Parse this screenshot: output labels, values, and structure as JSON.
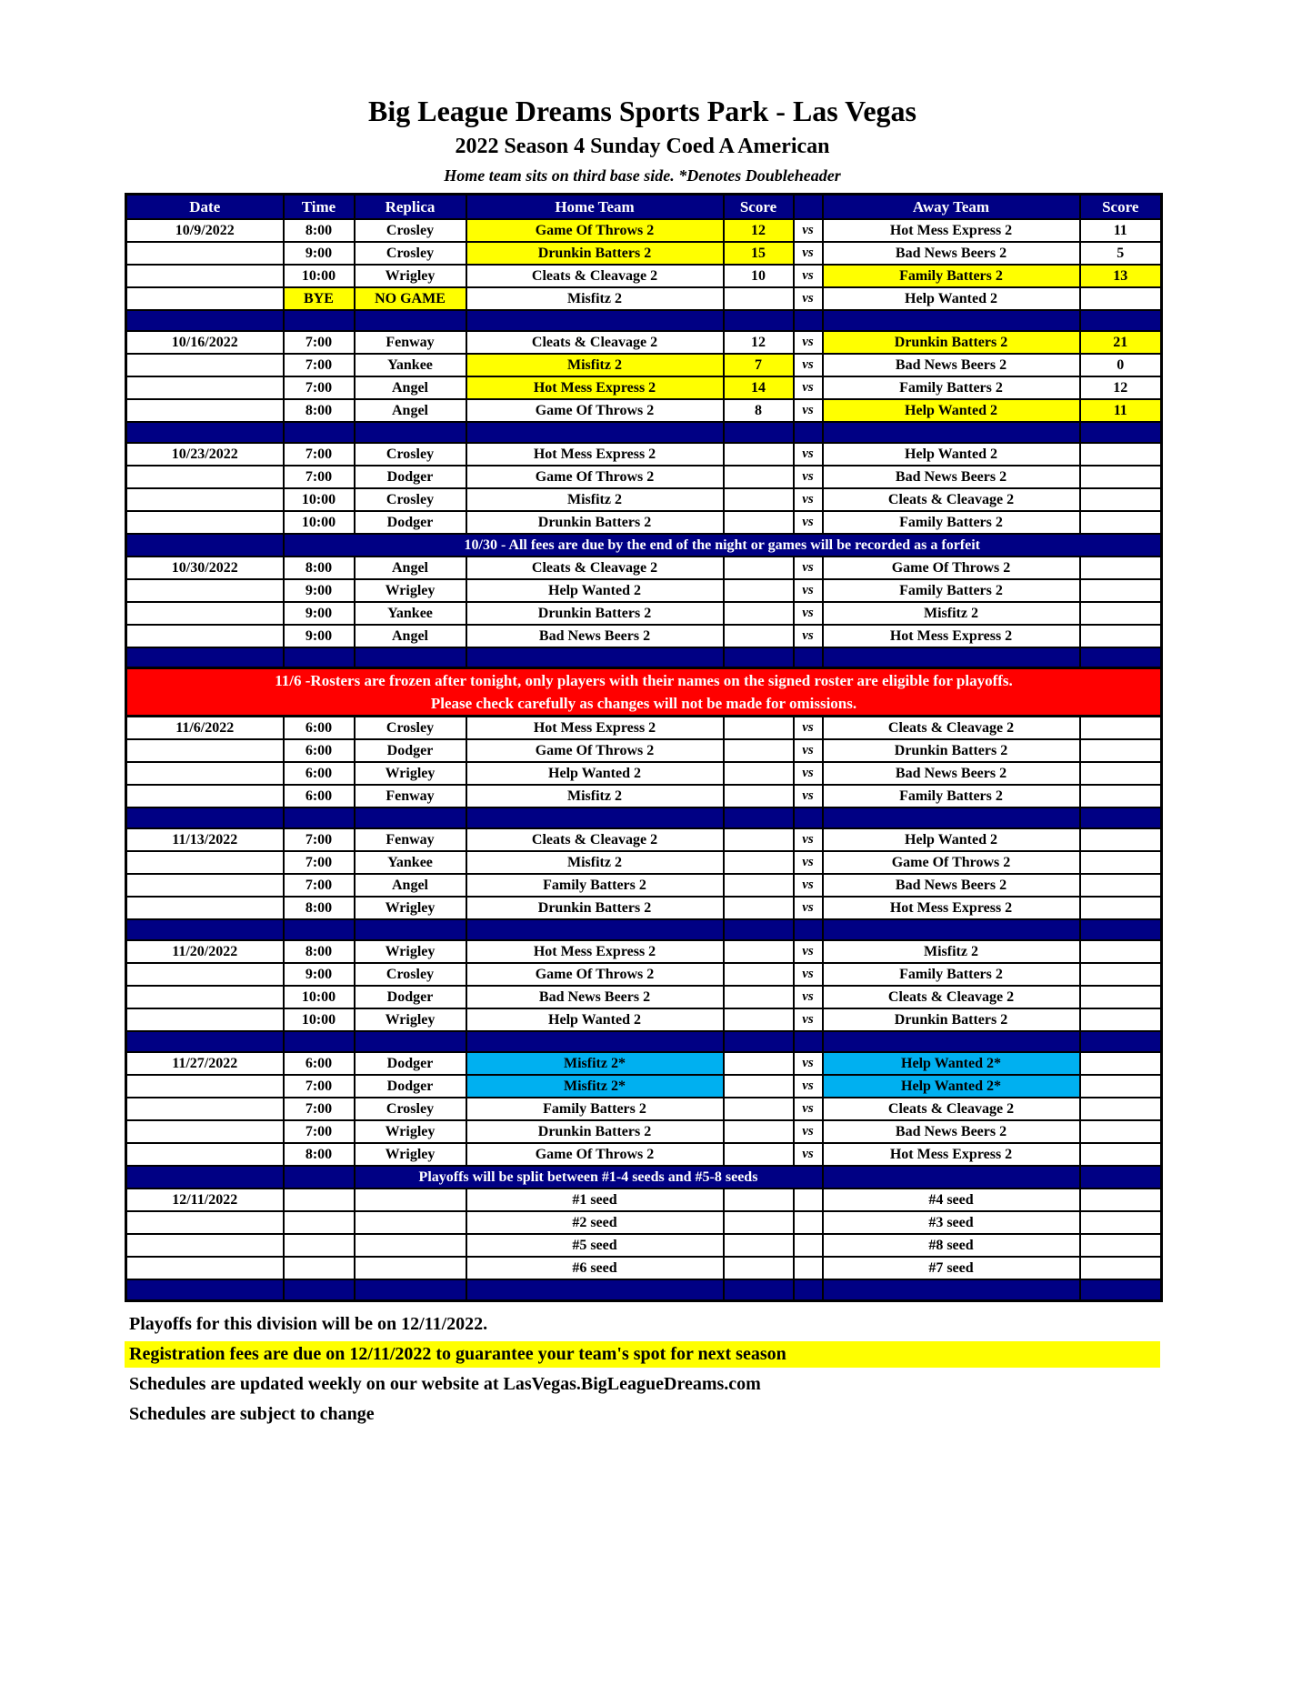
{
  "title": "Big League Dreams Sports Park - Las Vegas",
  "subtitle": "2022 Season 4 Sunday Coed A American",
  "note": "Home team sits on third base side.  *Denotes Doubleheader",
  "colors": {
    "navy": "#000084",
    "yellow": "#FFFF00",
    "cyan": "#00B0F0",
    "red": "#FF0000",
    "page_background": "#FFFFFF"
  },
  "table": {
    "headers": [
      "Date",
      "Time",
      "Replica",
      "Home Team",
      "Score",
      "",
      "Away Team",
      "Score"
    ],
    "vs_label": "vs",
    "rows": [
      {
        "t": "game",
        "date": "10/9/2022",
        "time": "8:00",
        "rep": "Crosley",
        "home": "Game Of Throws 2",
        "hs": "12",
        "away": "Hot Mess Express 2",
        "as": "11",
        "hl": {
          "home": "Y",
          "hs": "Y"
        }
      },
      {
        "t": "game",
        "time": "9:00",
        "rep": "Crosley",
        "home": "Drunkin Batters 2",
        "hs": "15",
        "away": "Bad News Beers 2",
        "as": "5",
        "hl": {
          "home": "Y",
          "hs": "Y"
        }
      },
      {
        "t": "game",
        "time": "10:00",
        "rep": "Wrigley",
        "home": "Cleats & Cleavage 2",
        "hs": "10",
        "away": "Family Batters 2",
        "as": "13",
        "hl": {
          "away": "Y",
          "as": "Y"
        }
      },
      {
        "t": "game",
        "time": "BYE",
        "rep": "NO GAME",
        "home": "Misfitz 2",
        "away": "Help Wanted 2",
        "hl": {
          "time": "Y",
          "rep": "Y"
        }
      },
      {
        "t": "sep"
      },
      {
        "t": "game",
        "date": "10/16/2022",
        "time": "7:00",
        "rep": "Fenway",
        "home": "Cleats & Cleavage 2",
        "hs": "12",
        "away": "Drunkin Batters 2",
        "as": "21",
        "hl": {
          "away": "Y",
          "as": "Y"
        }
      },
      {
        "t": "game",
        "time": "7:00",
        "rep": "Yankee",
        "home": "Misfitz 2",
        "hs": "7",
        "away": "Bad News Beers 2",
        "as": "0",
        "hl": {
          "home": "Y",
          "hs": "Y"
        }
      },
      {
        "t": "game",
        "time": "7:00",
        "rep": "Angel",
        "home": "Hot Mess Express 2",
        "hs": "14",
        "away": "Family Batters 2",
        "as": "12",
        "hl": {
          "home": "Y",
          "hs": "Y"
        }
      },
      {
        "t": "game",
        "time": "8:00",
        "rep": "Angel",
        "home": "Game Of Throws 2",
        "hs": "8",
        "away": "Help Wanted 2",
        "as": "11",
        "hl": {
          "away": "Y",
          "as": "Y"
        }
      },
      {
        "t": "sep"
      },
      {
        "t": "game",
        "date": "10/23/2022",
        "time": "7:00",
        "rep": "Crosley",
        "home": "Hot Mess Express 2",
        "away": "Help Wanted 2"
      },
      {
        "t": "game",
        "time": "7:00",
        "rep": "Dodger",
        "home": "Game Of Throws 2",
        "away": "Bad News Beers 2"
      },
      {
        "t": "game",
        "time": "10:00",
        "rep": "Crosley",
        "home": "Misfitz 2",
        "away": "Cleats & Cleavage 2"
      },
      {
        "t": "game",
        "time": "10:00",
        "rep": "Dodger",
        "home": "Drunkin Batters 2",
        "away": "Family Batters 2"
      },
      {
        "t": "note",
        "text": "10/30 - All fees are due by the end of the night or games will be recorded as a forfeit"
      },
      {
        "t": "game",
        "date": "10/30/2022",
        "time": "8:00",
        "rep": "Angel",
        "home": "Cleats & Cleavage 2",
        "away": "Game Of Throws 2"
      },
      {
        "t": "game",
        "time": "9:00",
        "rep": "Wrigley",
        "home": "Help Wanted 2",
        "away": "Family Batters 2"
      },
      {
        "t": "game",
        "time": "9:00",
        "rep": "Yankee",
        "home": "Drunkin Batters 2",
        "away": "Misfitz 2"
      },
      {
        "t": "game",
        "time": "9:00",
        "rep": "Angel",
        "home": "Bad News Beers 2",
        "away": "Hot Mess Express 2"
      },
      {
        "t": "sep"
      },
      {
        "t": "banner",
        "lines": [
          "11/6 -Rosters are frozen after tonight, only players with their names on the signed roster are eligible for playoffs.",
          "Please check carefully as changes will not be made for omissions."
        ]
      },
      {
        "t": "game",
        "date": "11/6/2022",
        "time": "6:00",
        "rep": "Crosley",
        "home": "Hot Mess Express 2",
        "away": "Cleats & Cleavage 2"
      },
      {
        "t": "game",
        "time": "6:00",
        "rep": "Dodger",
        "home": "Game Of Throws 2",
        "away": "Drunkin Batters 2"
      },
      {
        "t": "game",
        "time": "6:00",
        "rep": "Wrigley",
        "home": "Help Wanted 2",
        "away": "Bad News Beers 2"
      },
      {
        "t": "game",
        "time": "6:00",
        "rep": "Fenway",
        "home": "Misfitz 2",
        "away": "Family Batters 2"
      },
      {
        "t": "sep"
      },
      {
        "t": "game",
        "date": "11/13/2022",
        "time": "7:00",
        "rep": "Fenway",
        "home": "Cleats & Cleavage 2",
        "away": "Help Wanted 2"
      },
      {
        "t": "game",
        "time": "7:00",
        "rep": "Yankee",
        "home": "Misfitz 2",
        "away": "Game Of Throws 2"
      },
      {
        "t": "game",
        "time": "7:00",
        "rep": "Angel",
        "home": "Family Batters 2",
        "away": "Bad News Beers 2"
      },
      {
        "t": "game",
        "time": "8:00",
        "rep": "Wrigley",
        "home": "Drunkin Batters 2",
        "away": "Hot Mess Express 2"
      },
      {
        "t": "sep"
      },
      {
        "t": "game",
        "date": "11/20/2022",
        "time": "8:00",
        "rep": "Wrigley",
        "home": "Hot Mess Express 2",
        "away": "Misfitz 2"
      },
      {
        "t": "game",
        "time": "9:00",
        "rep": "Crosley",
        "home": "Game Of Throws 2",
        "away": "Family Batters 2"
      },
      {
        "t": "game",
        "time": "10:00",
        "rep": "Dodger",
        "home": "Bad News Beers 2",
        "away": "Cleats & Cleavage 2"
      },
      {
        "t": "game",
        "time": "10:00",
        "rep": "Wrigley",
        "home": "Help Wanted 2",
        "away": "Drunkin Batters 2"
      },
      {
        "t": "sep"
      },
      {
        "t": "game",
        "date": "11/27/2022",
        "time": "6:00",
        "rep": "Dodger",
        "home": "Misfitz 2*",
        "away": "Help Wanted 2*",
        "hl": {
          "home": "C",
          "away": "C"
        }
      },
      {
        "t": "game",
        "time": "7:00",
        "rep": "Dodger",
        "home": "Misfitz 2*",
        "away": "Help Wanted 2*",
        "hl": {
          "home": "C",
          "away": "C"
        }
      },
      {
        "t": "game",
        "time": "7:00",
        "rep": "Crosley",
        "home": "Family Batters 2",
        "away": "Cleats & Cleavage 2"
      },
      {
        "t": "game",
        "time": "7:00",
        "rep": "Wrigley",
        "home": "Drunkin Batters 2",
        "away": "Bad News Beers 2"
      },
      {
        "t": "game",
        "time": "8:00",
        "rep": "Wrigley",
        "home": "Game Of Throws 2",
        "away": "Hot Mess Express 2"
      },
      {
        "t": "note2",
        "text": "Playoffs will be split between #1-4 seeds and #5-8 seeds"
      },
      {
        "t": "game",
        "date": "12/11/2022",
        "home": "#1 seed",
        "away": "#4 seed",
        "novs": true
      },
      {
        "t": "game",
        "home": "#2 seed",
        "away": "#3 seed",
        "novs": true
      },
      {
        "t": "game",
        "home": "#5 seed",
        "away": "#8 seed",
        "novs": true
      },
      {
        "t": "game",
        "home": "#6 seed",
        "away": "#7 seed",
        "novs": true
      },
      {
        "t": "sep"
      }
    ]
  },
  "footer": {
    "lines": [
      {
        "text": "Playoffs for this division will be on 12/11/2022.",
        "highlight": false
      },
      {
        "text": "Registration fees are due on 12/11/2022 to guarantee your team's spot for next season",
        "highlight": true
      },
      {
        "text": "Schedules are updated weekly on our website at LasVegas.BigLeagueDreams.com",
        "highlight": false
      },
      {
        "text": "Schedules are subject to change",
        "highlight": false
      }
    ]
  }
}
